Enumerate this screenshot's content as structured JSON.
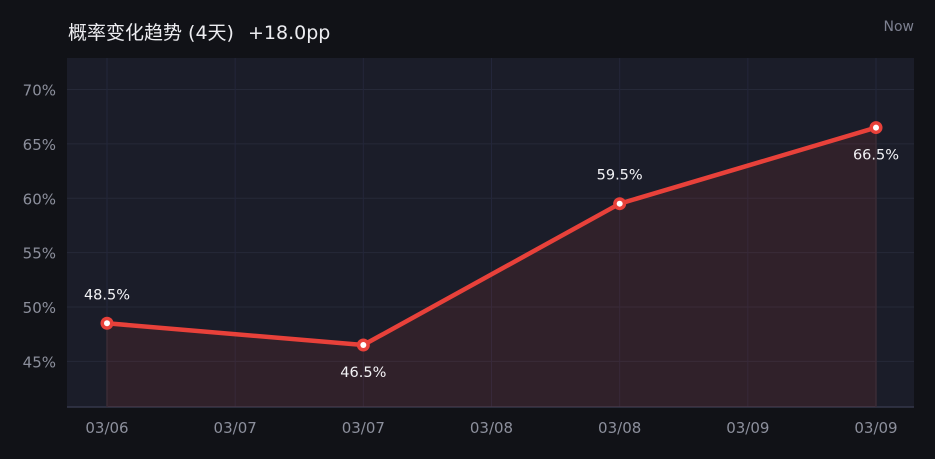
{
  "header": {
    "title": "概率变化趋势 (4天)",
    "delta": "+18.0pp",
    "now_label": "Now"
  },
  "colors": {
    "line": "#e8413a",
    "plot_bg": "#1b1d29",
    "page_bg": "#111217"
  },
  "chart_data": {
    "type": "line",
    "title": "概率变化趋势 (4天)",
    "x": [
      "03/06",
      "03/07",
      "03/08",
      "03/09"
    ],
    "series": [
      {
        "values": [
          48.5,
          46.5,
          59.5,
          66.5
        ]
      }
    ],
    "data_labels": [
      "48.5%",
      "46.5%",
      "59.5%",
      "66.5%"
    ],
    "x_tick_labels": [
      "03/06",
      "03/07",
      "03/07",
      "03/08",
      "03/08",
      "03/09",
      "03/09"
    ],
    "y_ticks": [
      45,
      50,
      55,
      60,
      65,
      70
    ],
    "y_tick_labels": [
      "45%",
      "50%",
      "55%",
      "60%",
      "65%",
      "70%"
    ],
    "ylim": [
      40.8,
      72.9
    ],
    "grid": true,
    "area_fill": true
  }
}
